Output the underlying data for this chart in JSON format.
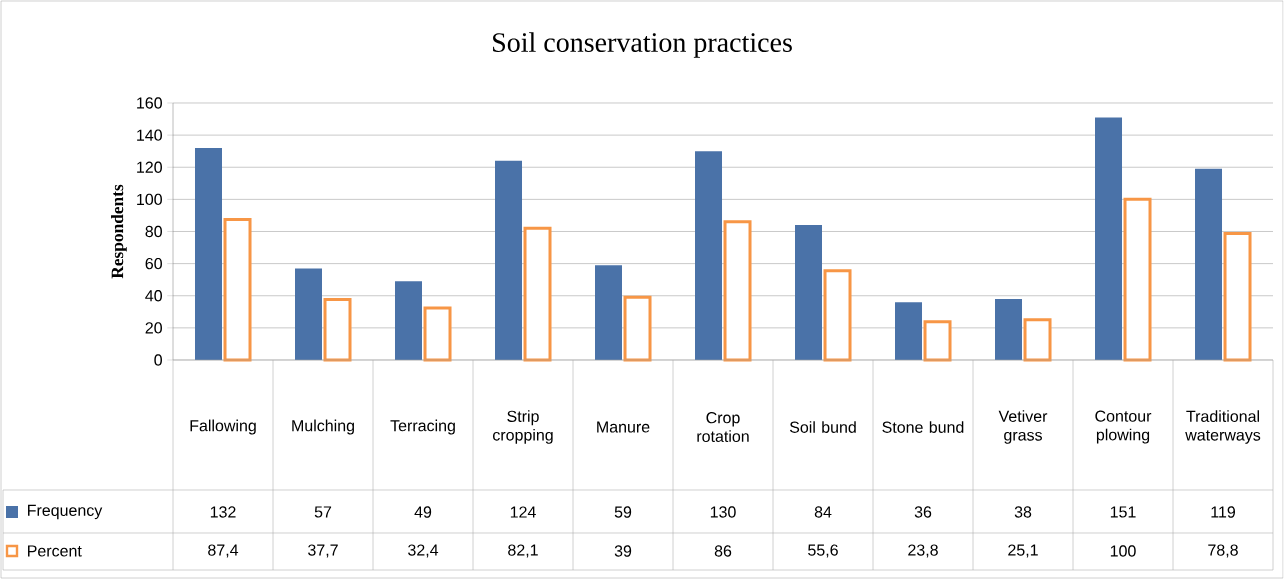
{
  "chart_data": {
    "type": "bar",
    "title": "Soil conservation practices",
    "ylabel": "Respondents",
    "categories": [
      "Fallowing",
      "Mulching",
      "Terracing",
      "Strip cropping",
      "Manure",
      "Crop rotation",
      "Soil bund",
      "Stone bund",
      "Vetiver grass",
      "Contour plowing",
      "Traditional waterways"
    ],
    "series": [
      {
        "name": "Frequency",
        "color": "#4a72a8",
        "values": [
          132,
          57,
          49,
          124,
          59,
          130,
          84,
          36,
          38,
          151,
          119
        ],
        "value_labels": [
          "132",
          "57",
          "49",
          "124",
          "59",
          "130",
          "84",
          "36",
          "38",
          "151",
          "119"
        ]
      },
      {
        "name": "Percent",
        "color": "#f79646",
        "values": [
          87.4,
          37.7,
          32.4,
          82.1,
          39,
          86,
          55.6,
          23.8,
          25.1,
          100,
          78.8
        ],
        "value_labels": [
          "87,4",
          "37,7",
          "32,4",
          "82,1",
          "39",
          "86",
          "55,6",
          "23,8",
          "25,1",
          "100",
          "78,8"
        ]
      }
    ],
    "ylim": [
      0,
      160
    ],
    "yticks": [
      0,
      20,
      40,
      60,
      80,
      100,
      120,
      140,
      160
    ],
    "grid": "y",
    "legend": "bottom"
  }
}
